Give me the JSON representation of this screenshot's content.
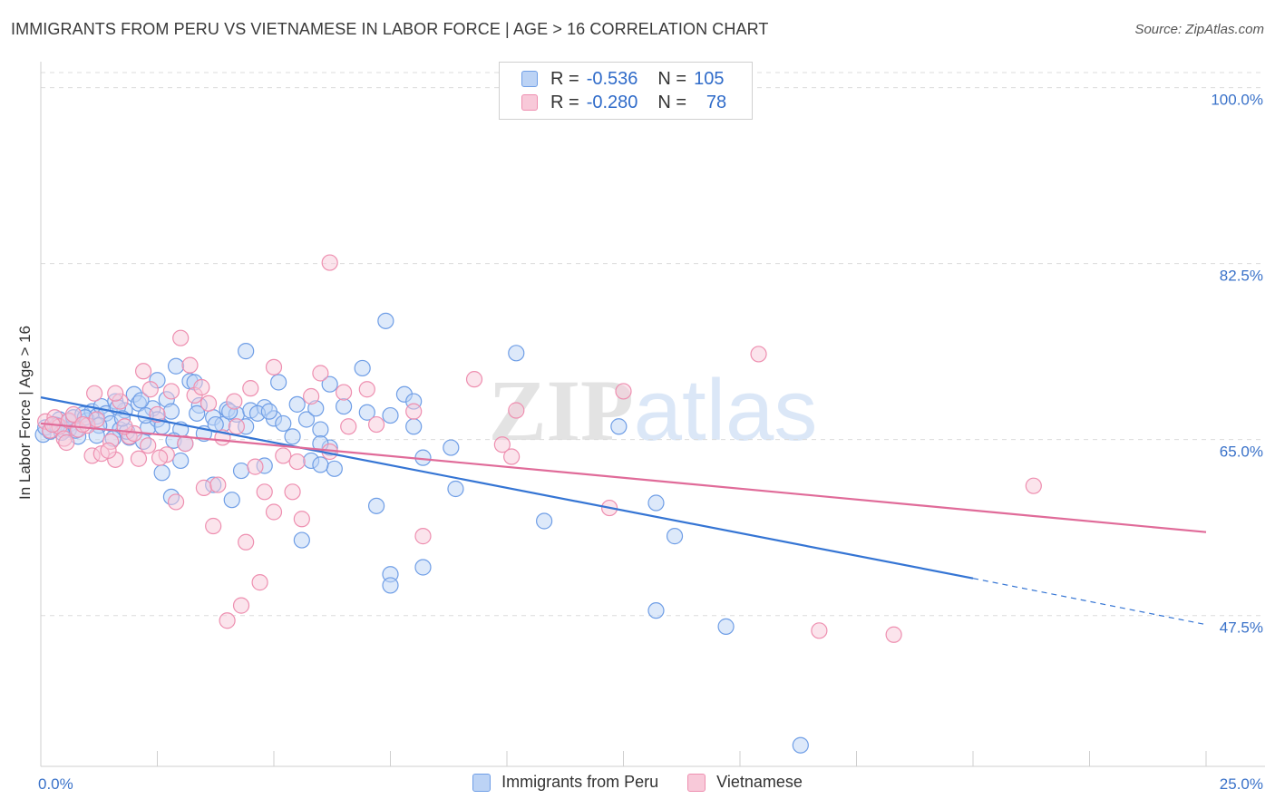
{
  "title": "IMMIGRANTS FROM PERU VS VIETNAMESE IN LABOR FORCE | AGE > 16 CORRELATION CHART",
  "source": "Source: ZipAtlas.com",
  "watermark": "ZIPatlas",
  "legend": {
    "rows": [
      {
        "r_label": "R =",
        "r_value": "-0.536",
        "n_label": "N =",
        "n_value": "105",
        "color": "#6f9ee6",
        "fill": "#bcd3f5"
      },
      {
        "r_label": "R =",
        "r_value": "-0.280",
        "n_label": "N =",
        "n_value": "78",
        "color": "#ee8fb0",
        "fill": "#f8c9d9"
      }
    ]
  },
  "bottom_legend": [
    {
      "label": "Immigrants from Peru",
      "color": "#6f9ee6",
      "fill": "#bcd3f5"
    },
    {
      "label": "Vietnamese",
      "color": "#ee8fb0",
      "fill": "#f8c9d9"
    }
  ],
  "chart_data": {
    "type": "scatter",
    "title": "IMMIGRANTS FROM PERU VS VIETNAMESE IN LABOR FORCE | AGE > 16 CORRELATION CHART",
    "xlabel": "",
    "ylabel": "In Labor Force | Age > 16",
    "xlim": [
      0,
      25
    ],
    "ylim": [
      32.5,
      101.5
    ],
    "x_tick_labels": [
      "0.0%",
      "25.0%"
    ],
    "y_ticks": [
      47.5,
      65.0,
      82.5,
      100.0
    ],
    "y_tick_labels": [
      "47.5%",
      "65.0%",
      "82.5%",
      "100.0%"
    ],
    "grid": true,
    "legend_position": "top-center",
    "series": [
      {
        "name": "Immigrants from Peru",
        "color": "#3575d4",
        "marker_fill": "#bcd3f5",
        "marker_stroke": "#6f9ee6",
        "trend": {
          "x": [
            0,
            20.0
          ],
          "y": [
            69.2,
            51.2
          ]
        },
        "trend_dashed": {
          "x": [
            20.0,
            25.0
          ],
          "y": [
            51.2,
            46.6
          ]
        },
        "points": [
          [
            0.05,
            65.5
          ],
          [
            0.1,
            66.2
          ],
          [
            0.2,
            65.8
          ],
          [
            0.3,
            66.5
          ],
          [
            0.4,
            67.0
          ],
          [
            0.5,
            65.9
          ],
          [
            0.6,
            66.8
          ],
          [
            0.7,
            67.2
          ],
          [
            0.8,
            65.3
          ],
          [
            0.9,
            67.5
          ],
          [
            1.0,
            66.9
          ],
          [
            1.1,
            67.8
          ],
          [
            1.2,
            67.3
          ],
          [
            1.3,
            68.3
          ],
          [
            1.4,
            67.6
          ],
          [
            1.5,
            66.6
          ],
          [
            1.6,
            68.8
          ],
          [
            1.7,
            66.0
          ],
          [
            1.8,
            67.9
          ],
          [
            1.9,
            65.2
          ],
          [
            2.0,
            69.5
          ],
          [
            2.1,
            68.6
          ],
          [
            2.2,
            64.8
          ],
          [
            2.3,
            66.2
          ],
          [
            2.4,
            68.1
          ],
          [
            2.5,
            67.0
          ],
          [
            2.6,
            66.3
          ],
          [
            2.7,
            69.0
          ],
          [
            2.8,
            67.8
          ],
          [
            3.0,
            66.0
          ],
          [
            3.2,
            70.8
          ],
          [
            3.4,
            68.4
          ],
          [
            3.5,
            65.6
          ],
          [
            3.7,
            67.2
          ],
          [
            3.9,
            66.5
          ],
          [
            4.0,
            68.0
          ],
          [
            4.2,
            67.5
          ],
          [
            4.4,
            66.3
          ],
          [
            4.5,
            67.9
          ],
          [
            4.8,
            68.2
          ],
          [
            5.0,
            67.1
          ],
          [
            5.2,
            66.6
          ],
          [
            5.5,
            68.5
          ],
          [
            5.7,
            67.0
          ],
          [
            6.0,
            66.0
          ],
          [
            6.2,
            64.2
          ],
          [
            6.5,
            68.3
          ],
          [
            7.0,
            67.7
          ],
          [
            7.5,
            67.4
          ],
          [
            8.0,
            66.3
          ],
          [
            3.35,
            67.6
          ],
          [
            4.65,
            67.6
          ],
          [
            2.85,
            64.9
          ],
          [
            1.55,
            65.1
          ],
          [
            0.95,
            67.2
          ],
          [
            1.65,
            68.2
          ],
          [
            2.25,
            67.4
          ],
          [
            4.05,
            67.8
          ],
          [
            3.75,
            66.5
          ],
          [
            0.6,
            66.0
          ],
          [
            0.75,
            65.9
          ],
          [
            1.25,
            66.4
          ],
          [
            1.85,
            65.8
          ],
          [
            2.9,
            72.3
          ],
          [
            3.3,
            70.7
          ],
          [
            4.4,
            73.8
          ],
          [
            5.1,
            70.7
          ],
          [
            6.2,
            70.5
          ],
          [
            6.9,
            72.1
          ],
          [
            7.8,
            69.5
          ],
          [
            8.0,
            68.8
          ],
          [
            7.4,
            76.8
          ],
          [
            10.2,
            73.6
          ],
          [
            2.6,
            61.7
          ],
          [
            3.0,
            62.9
          ],
          [
            3.7,
            60.5
          ],
          [
            4.1,
            59.0
          ],
          [
            4.3,
            61.9
          ],
          [
            4.8,
            62.4
          ],
          [
            5.8,
            62.9
          ],
          [
            6.3,
            62.1
          ],
          [
            6.0,
            64.6
          ],
          [
            7.2,
            58.4
          ],
          [
            7.5,
            51.6
          ],
          [
            7.5,
            50.5
          ],
          [
            8.2,
            63.2
          ],
          [
            8.2,
            52.3
          ],
          [
            8.8,
            64.2
          ],
          [
            8.9,
            60.1
          ],
          [
            10.8,
            56.9
          ],
          [
            12.4,
            66.3
          ],
          [
            13.2,
            58.7
          ],
          [
            13.6,
            55.4
          ],
          [
            13.2,
            48.0
          ],
          [
            14.7,
            46.4
          ],
          [
            16.3,
            34.6
          ],
          [
            2.8,
            59.3
          ],
          [
            2.5,
            70.9
          ],
          [
            5.6,
            55.0
          ],
          [
            5.4,
            65.3
          ],
          [
            4.9,
            67.8
          ],
          [
            5.9,
            68.1
          ],
          [
            6.0,
            62.5
          ],
          [
            1.2,
            65.4
          ],
          [
            3.1,
            64.6
          ],
          [
            0.35,
            66.4
          ],
          [
            0.45,
            65.7
          ],
          [
            1.75,
            67.1
          ],
          [
            2.15,
            68.9
          ]
        ]
      },
      {
        "name": "Vietnamese",
        "color": "#e06b99",
        "marker_fill": "#f8c9d9",
        "marker_stroke": "#ee8fb0",
        "trend": {
          "x": [
            0,
            25.0
          ],
          "y": [
            66.6,
            55.8
          ]
        },
        "points": [
          [
            0.1,
            66.8
          ],
          [
            0.2,
            65.9
          ],
          [
            0.3,
            67.2
          ],
          [
            0.4,
            66.3
          ],
          [
            0.5,
            65.1
          ],
          [
            0.6,
            66.9
          ],
          [
            0.7,
            67.5
          ],
          [
            0.8,
            66.0
          ],
          [
            1.0,
            66.4
          ],
          [
            1.1,
            63.4
          ],
          [
            1.2,
            67.0
          ],
          [
            1.3,
            63.6
          ],
          [
            1.5,
            64.8
          ],
          [
            1.6,
            63.0
          ],
          [
            1.7,
            68.8
          ],
          [
            1.9,
            65.3
          ],
          [
            2.1,
            63.1
          ],
          [
            2.3,
            64.4
          ],
          [
            2.5,
            67.5
          ],
          [
            2.7,
            63.5
          ],
          [
            2.9,
            58.8
          ],
          [
            3.1,
            64.6
          ],
          [
            3.3,
            69.4
          ],
          [
            3.5,
            60.2
          ],
          [
            3.7,
            56.4
          ],
          [
            3.9,
            65.2
          ],
          [
            4.2,
            66.3
          ],
          [
            4.4,
            54.8
          ],
          [
            4.6,
            62.3
          ],
          [
            4.8,
            59.8
          ],
          [
            5.0,
            57.8
          ],
          [
            5.2,
            63.4
          ],
          [
            5.4,
            59.8
          ],
          [
            5.6,
            57.1
          ],
          [
            5.8,
            69.3
          ],
          [
            6.2,
            63.8
          ],
          [
            6.5,
            69.7
          ],
          [
            7.0,
            70.0
          ],
          [
            7.2,
            66.5
          ],
          [
            8.0,
            67.8
          ],
          [
            8.2,
            55.4
          ],
          [
            9.3,
            71.0
          ],
          [
            9.9,
            64.5
          ],
          [
            10.1,
            63.3
          ],
          [
            10.2,
            67.9
          ],
          [
            12.2,
            58.2
          ],
          [
            12.5,
            69.8
          ],
          [
            15.4,
            73.5
          ],
          [
            16.7,
            46.0
          ],
          [
            18.3,
            45.6
          ],
          [
            21.3,
            60.4
          ],
          [
            3.0,
            75.1
          ],
          [
            3.2,
            72.4
          ],
          [
            5.0,
            72.2
          ],
          [
            6.0,
            71.6
          ],
          [
            6.2,
            82.6
          ],
          [
            2.2,
            71.8
          ],
          [
            1.6,
            69.6
          ],
          [
            2.0,
            65.6
          ],
          [
            3.8,
            60.5
          ],
          [
            4.0,
            47.0
          ],
          [
            4.3,
            48.5
          ],
          [
            4.7,
            50.8
          ],
          [
            3.45,
            70.2
          ],
          [
            2.55,
            63.2
          ],
          [
            1.15,
            69.6
          ],
          [
            0.25,
            66.5
          ],
          [
            4.15,
            68.8
          ],
          [
            2.35,
            70.0
          ],
          [
            1.45,
            63.9
          ],
          [
            0.9,
            66.5
          ],
          [
            3.6,
            68.6
          ],
          [
            2.8,
            69.8
          ],
          [
            1.8,
            66.3
          ],
          [
            6.6,
            66.3
          ],
          [
            5.5,
            62.8
          ],
          [
            0.55,
            64.7
          ],
          [
            4.5,
            70.1
          ]
        ]
      }
    ]
  }
}
